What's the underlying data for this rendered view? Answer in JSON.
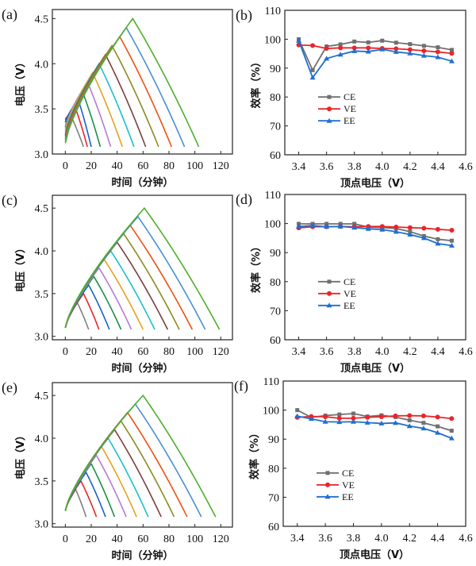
{
  "chart_data": [
    {
      "panel_label": "(a)",
      "type": "line",
      "xlabel": "时间（分钟）",
      "ylabel": "电压（V）",
      "xlim": [
        -10,
        129
      ],
      "ylim": [
        3.0,
        4.6
      ],
      "xticks": [
        0,
        20,
        40,
        60,
        80,
        100,
        120
      ],
      "yticks": [
        "3.0",
        "3.5",
        "4.0",
        "4.5"
      ],
      "colors": [
        "#808080",
        "#e8262a",
        "#1a5fd0",
        "#1b8f4a",
        "#b57ad8",
        "#e8a020",
        "#1bbfcf",
        "#7a3f3f",
        "#8a8a20",
        "#f05010",
        "#4a90d0",
        "#4caf2a"
      ],
      "series": [
        {
          "x": [
            0,
            5,
            14
          ],
          "y": [
            3.4,
            3.4,
            3.08
          ]
        },
        {
          "x": [
            0,
            8,
            17
          ],
          "y": [
            3.38,
            3.5,
            3.08
          ]
        },
        {
          "x": [
            0,
            10,
            20
          ],
          "y": [
            3.35,
            3.6,
            3.08
          ]
        },
        {
          "x": [
            0,
            13,
            27
          ],
          "y": [
            3.3,
            3.7,
            3.08
          ]
        },
        {
          "x": [
            0,
            17,
            35
          ],
          "y": [
            3.28,
            3.8,
            3.08
          ]
        },
        {
          "x": [
            0,
            21,
            44
          ],
          "y": [
            3.25,
            3.9,
            3.08
          ]
        },
        {
          "x": [
            0,
            26,
            53
          ],
          "y": [
            3.22,
            4.0,
            3.08
          ]
        },
        {
          "x": [
            0,
            31,
            62
          ],
          "y": [
            3.2,
            4.1,
            3.08
          ]
        },
        {
          "x": [
            0,
            36,
            72
          ],
          "y": [
            3.18,
            4.2,
            3.08
          ]
        },
        {
          "x": [
            0,
            42,
            82
          ],
          "y": [
            3.16,
            4.3,
            3.08
          ]
        },
        {
          "x": [
            0,
            47,
            92
          ],
          "y": [
            3.14,
            4.4,
            3.08
          ]
        },
        {
          "x": [
            0,
            52,
            103
          ],
          "y": [
            3.12,
            4.5,
            3.08
          ]
        }
      ]
    },
    {
      "panel_label": "(b)",
      "type": "line",
      "xlabel": "顶点电压（V）",
      "ylabel": "效率（%）",
      "xlim": [
        3.3,
        4.6
      ],
      "ylim": [
        60,
        110
      ],
      "xticks": [
        "3.4",
        "3.6",
        "3.8",
        "4.0",
        "4.2",
        "4.4",
        "4.6"
      ],
      "yticks": [
        60,
        70,
        80,
        90,
        100,
        110
      ],
      "x": [
        3.4,
        3.5,
        3.6,
        3.7,
        3.8,
        3.9,
        4.0,
        4.1,
        4.2,
        4.3,
        4.4,
        4.5
      ],
      "legend": "left",
      "series": [
        {
          "name": "CE",
          "color": "#707070",
          "marker": "square",
          "values": [
            100,
            89.3,
            97.5,
            98.2,
            99.2,
            98.9,
            99.5,
            98.8,
            98.3,
            97.7,
            97.2,
            96.3
          ]
        },
        {
          "name": "VE",
          "color": "#e8262a",
          "marker": "circle",
          "values": [
            98.0,
            97.8,
            96.8,
            97.0,
            97.0,
            97.0,
            96.8,
            96.7,
            96.4,
            96.0,
            95.6,
            95.1
          ]
        },
        {
          "name": "EE",
          "color": "#1f6fd0",
          "marker": "triangle",
          "values": [
            99.5,
            86.7,
            93.3,
            94.7,
            95.9,
            95.7,
            96.5,
            95.6,
            95.1,
            94.3,
            93.8,
            92.4
          ]
        }
      ]
    },
    {
      "panel_label": "(c)",
      "type": "line",
      "xlabel": "时间（分钟）",
      "ylabel": "电压（V）",
      "xlim": [
        -10,
        129
      ],
      "ylim": [
        2.96,
        4.65
      ],
      "xticks": [
        0,
        20,
        40,
        60,
        80,
        100,
        120
      ],
      "yticks": [
        "3.0",
        "3.5",
        "4.0",
        "4.5"
      ],
      "colors": [
        "#808080",
        "#e8262a",
        "#1a5fd0",
        "#1b8f4a",
        "#b57ad8",
        "#e8a020",
        "#1bbfcf",
        "#7a3f3f",
        "#8a8a20",
        "#f05010",
        "#4a90d0",
        "#4caf2a"
      ],
      "series": [
        {
          "x": [
            0,
            9,
            18
          ],
          "y": [
            3.1,
            3.4,
            3.08
          ]
        },
        {
          "x": [
            0,
            14,
            26
          ],
          "y": [
            3.1,
            3.5,
            3.08
          ]
        },
        {
          "x": [
            0,
            18,
            34
          ],
          "y": [
            3.1,
            3.6,
            3.08
          ]
        },
        {
          "x": [
            0,
            22,
            43
          ],
          "y": [
            3.1,
            3.7,
            3.08
          ]
        },
        {
          "x": [
            0,
            26,
            51
          ],
          "y": [
            3.1,
            3.8,
            3.08
          ]
        },
        {
          "x": [
            0,
            30,
            60
          ],
          "y": [
            3.1,
            3.9,
            3.08
          ]
        },
        {
          "x": [
            0,
            35,
            69
          ],
          "y": [
            3.1,
            4.0,
            3.08
          ]
        },
        {
          "x": [
            0,
            40,
            79
          ],
          "y": [
            3.1,
            4.1,
            3.08
          ]
        },
        {
          "x": [
            0,
            45,
            88
          ],
          "y": [
            3.1,
            4.2,
            3.08
          ]
        },
        {
          "x": [
            0,
            50,
            98
          ],
          "y": [
            3.1,
            4.3,
            3.08
          ]
        },
        {
          "x": [
            0,
            56,
            108
          ],
          "y": [
            3.1,
            4.4,
            3.08
          ]
        },
        {
          "x": [
            0,
            61,
            119
          ],
          "y": [
            3.1,
            4.5,
            3.08
          ]
        }
      ]
    },
    {
      "panel_label": "(d)",
      "type": "line",
      "xlabel": "顶点电压（V）",
      "ylabel": "效率（%）",
      "xlim": [
        3.3,
        4.6
      ],
      "ylim": [
        60,
        110
      ],
      "xticks": [
        "3.4",
        "3.6",
        "3.8",
        "4.0",
        "4.2",
        "4.4",
        "4.6"
      ],
      "yticks": [
        60,
        70,
        80,
        90,
        100,
        110
      ],
      "x": [
        3.4,
        3.5,
        3.6,
        3.7,
        3.8,
        3.9,
        4.0,
        4.1,
        4.2,
        4.3,
        4.4,
        4.5
      ],
      "legend": "left",
      "series": [
        {
          "name": "CE",
          "color": "#707070",
          "marker": "square",
          "values": [
            99.9,
            99.9,
            99.9,
            99.9,
            99.9,
            98.8,
            98.6,
            98.3,
            97.2,
            95.7,
            94.6,
            94.1
          ]
        },
        {
          "name": "VE",
          "color": "#e8262a",
          "marker": "circle",
          "values": [
            98.5,
            98.9,
            98.9,
            99.0,
            98.9,
            99.0,
            99.0,
            98.8,
            98.6,
            98.4,
            98.0,
            97.7
          ]
        },
        {
          "name": "EE",
          "color": "#1f6fd0",
          "marker": "triangle",
          "values": [
            99.0,
            99.3,
            98.9,
            99.0,
            98.6,
            98.2,
            97.9,
            97.2,
            96.2,
            95.0,
            93.1,
            92.4
          ]
        }
      ]
    },
    {
      "panel_label": "(e)",
      "type": "line",
      "xlabel": "时间（分钟）",
      "ylabel": "电压（V）",
      "xlim": [
        -10,
        129
      ],
      "ylim": [
        2.96,
        4.65
      ],
      "xticks": [
        0,
        20,
        40,
        60,
        80,
        100,
        120
      ],
      "yticks": [
        "3.0",
        "3.5",
        "4.0",
        "4.5"
      ],
      "colors": [
        "#808080",
        "#e8262a",
        "#1a5fd0",
        "#1b8f4a",
        "#b57ad8",
        "#e8a020",
        "#1bbfcf",
        "#7a3f3f",
        "#8a8a20",
        "#f05010",
        "#4a90d0",
        "#4caf2a"
      ],
      "series": [
        {
          "x": [
            0,
            8,
            16
          ],
          "y": [
            3.15,
            3.4,
            3.08
          ]
        },
        {
          "x": [
            0,
            12,
            24
          ],
          "y": [
            3.15,
            3.5,
            3.08
          ]
        },
        {
          "x": [
            0,
            16,
            31
          ],
          "y": [
            3.15,
            3.6,
            3.08
          ]
        },
        {
          "x": [
            0,
            20,
            38
          ],
          "y": [
            3.15,
            3.7,
            3.08
          ]
        },
        {
          "x": [
            0,
            24,
            47
          ],
          "y": [
            3.15,
            3.8,
            3.08
          ]
        },
        {
          "x": [
            0,
            28,
            55
          ],
          "y": [
            3.15,
            3.9,
            3.08
          ]
        },
        {
          "x": [
            0,
            33,
            64
          ],
          "y": [
            3.15,
            4.0,
            3.08
          ]
        },
        {
          "x": [
            0,
            38,
            74
          ],
          "y": [
            3.15,
            4.1,
            3.08
          ]
        },
        {
          "x": [
            0,
            43,
            84
          ],
          "y": [
            3.15,
            4.2,
            3.08
          ]
        },
        {
          "x": [
            0,
            48,
            94
          ],
          "y": [
            3.15,
            4.3,
            3.08
          ]
        },
        {
          "x": [
            0,
            54,
            105
          ],
          "y": [
            3.15,
            4.4,
            3.08
          ]
        },
        {
          "x": [
            0,
            60,
            116
          ],
          "y": [
            3.15,
            4.5,
            3.08
          ]
        }
      ]
    },
    {
      "panel_label": "(f)",
      "type": "line",
      "xlabel": "顶点电压（V）",
      "ylabel": "效率（%）",
      "xlim": [
        3.3,
        4.6
      ],
      "ylim": [
        60,
        110
      ],
      "xticks": [
        "3.4",
        "3.6",
        "3.8",
        "4.0",
        "4.2",
        "4.4",
        "4.6"
      ],
      "yticks": [
        60,
        70,
        80,
        90,
        100,
        110
      ],
      "x": [
        3.4,
        3.5,
        3.6,
        3.7,
        3.8,
        3.9,
        4.0,
        4.1,
        4.2,
        4.3,
        4.4,
        4.5
      ],
      "legend": "left",
      "series": [
        {
          "name": "CE",
          "color": "#707070",
          "marker": "square",
          "values": [
            100,
            97.5,
            98.1,
            98.5,
            98.8,
            97.8,
            98.2,
            97.6,
            96.5,
            95.6,
            94.4,
            92.9
          ]
        },
        {
          "name": "VE",
          "color": "#e8262a",
          "marker": "circle",
          "values": [
            97.5,
            97.8,
            97.7,
            97.2,
            97.2,
            97.5,
            97.7,
            98.0,
            98.1,
            98.0,
            97.6,
            97.1
          ]
        },
        {
          "name": "EE",
          "color": "#1f6fd0",
          "marker": "triangle",
          "values": [
            97.9,
            97.0,
            96.0,
            95.9,
            96.0,
            95.7,
            95.4,
            95.6,
            94.5,
            93.7,
            92.2,
            90.3
          ]
        }
      ]
    }
  ]
}
